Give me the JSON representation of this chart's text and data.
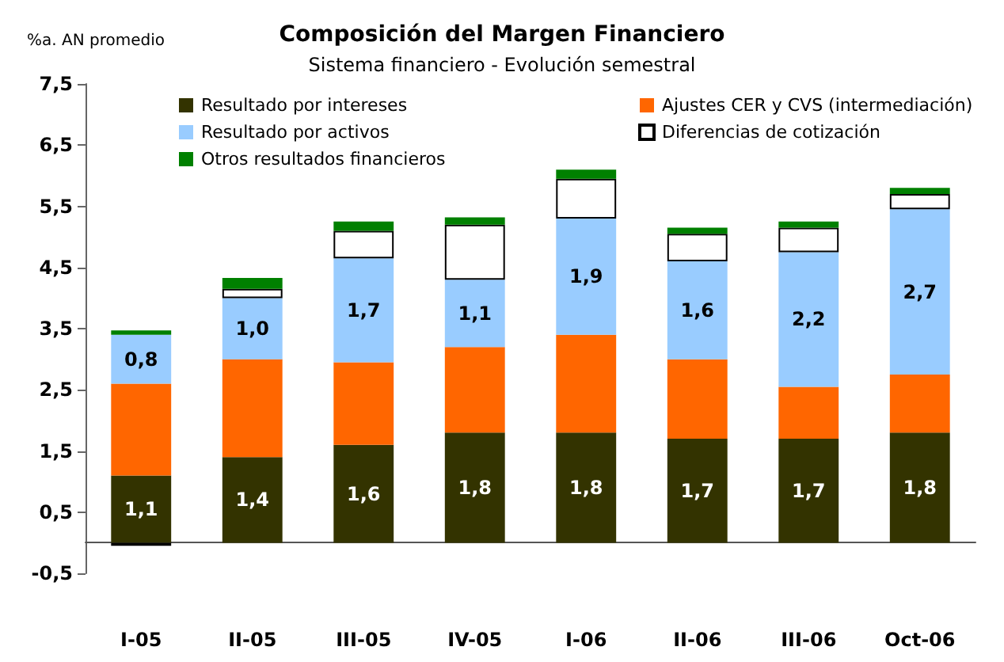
{
  "chart_data": {
    "type": "bar",
    "title": "Composición del Margen Financiero",
    "subtitle": "Sistema financiero - Evolución semestral",
    "ylabel": "%a. AN promedio",
    "categories": [
      "I-05",
      "II-05",
      "III-05",
      "IV-05",
      "I-06",
      "II-06",
      "III-06",
      "Oct-06"
    ],
    "stacked": true,
    "grid": false,
    "legend": "top",
    "ylim": [
      -0.5,
      7.5
    ],
    "yticks": [
      {
        "value": -0.5,
        "label": "-0,5"
      },
      {
        "value": 0.5,
        "label": "0,5"
      },
      {
        "value": 1.5,
        "label": "1,5"
      },
      {
        "value": 2.5,
        "label": "2,5"
      },
      {
        "value": 3.5,
        "label": "3,5"
      },
      {
        "value": 4.5,
        "label": "4,5"
      },
      {
        "value": 5.5,
        "label": "5,5"
      },
      {
        "value": 6.5,
        "label": "6,5"
      },
      {
        "value": 7.5,
        "label": "7,5"
      }
    ],
    "series": [
      {
        "name": "Resultado por intereses",
        "color": "#333300",
        "values": [
          1.1,
          1.4,
          1.6,
          1.8,
          1.8,
          1.7,
          1.7,
          1.8
        ],
        "value_labels": [
          "1,1",
          "1,4",
          "1,6",
          "1,8",
          "1,8",
          "1,7",
          "1,7",
          "1,8"
        ]
      },
      {
        "name": "Ajustes CER y CVS (intermediación)",
        "color": "#ff6600",
        "values": [
          1.5,
          1.6,
          1.35,
          1.4,
          1.6,
          1.3,
          0.85,
          0.95
        ]
      },
      {
        "name": "Resultado por activos",
        "color": "#99ccff",
        "values": [
          0.8,
          1.0,
          1.7,
          1.1,
          1.9,
          1.6,
          2.2,
          2.7
        ],
        "value_labels": [
          "0,8",
          "1,0",
          "1,7",
          "1,1",
          "1,9",
          "1,6",
          "2,2",
          "2,7"
        ]
      },
      {
        "name": "Diferencias de cotización",
        "color": "#ffffff",
        "values": [
          -0.05,
          0.15,
          0.45,
          0.9,
          0.65,
          0.45,
          0.4,
          0.25
        ]
      },
      {
        "name": "Otros resultados financieros",
        "color": "#008000",
        "values": [
          0.07,
          0.18,
          0.15,
          0.12,
          0.15,
          0.1,
          0.1,
          0.1
        ]
      }
    ]
  }
}
